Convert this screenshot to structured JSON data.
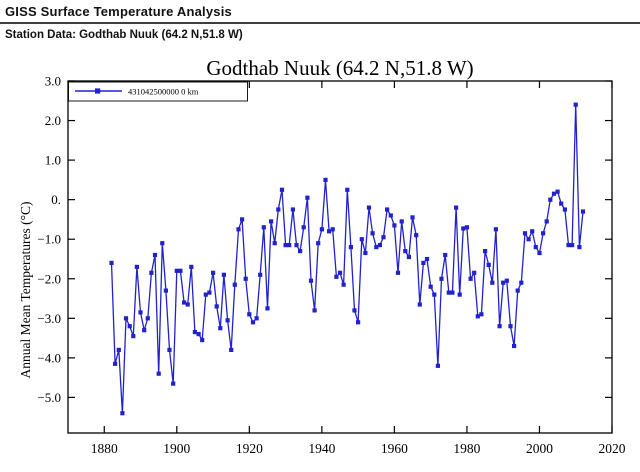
{
  "page": {
    "header_title": "GISS Surface Temperature Analysis",
    "station_line": "Station Data: Godthab Nuuk (64.2 N,51.8 W)"
  },
  "chart_data": {
    "type": "line",
    "title": "Godthab Nuuk (64.2 N,51.8 W)",
    "ylabel": "Annual Mean Temperatures (°C)",
    "xlabel": "",
    "grid": false,
    "legend_position": "top-left",
    "legend_label": "431042500000  0 km",
    "line_color": "#2222cc",
    "marker": "square",
    "xlim": [
      1870,
      2020
    ],
    "ylim": [
      -5.9,
      3.0
    ],
    "xticks": [
      1880,
      1900,
      1920,
      1940,
      1960,
      1980,
      2000,
      2020
    ],
    "ytick_values": [
      3,
      2,
      1,
      0,
      -1,
      -2,
      -3,
      -4,
      -5
    ],
    "ytick_labels": [
      "3.0",
      "2.0",
      "1.0",
      "0.",
      "−1.0",
      "−2.0",
      "−3.0",
      "−4.0",
      "−5.0"
    ],
    "series": [
      {
        "name": "431042500000 0 km",
        "x": [
          1882,
          1883,
          1884,
          1885,
          1886,
          1887,
          1888,
          1889,
          1890,
          1891,
          1892,
          1893,
          1894,
          1895,
          1896,
          1897,
          1898,
          1899,
          1900,
          1901,
          1902,
          1903,
          1904,
          1905,
          1906,
          1907,
          1908,
          1909,
          1910,
          1911,
          1912,
          1913,
          1914,
          1915,
          1916,
          1917,
          1918,
          1919,
          1920,
          1921,
          1922,
          1923,
          1924,
          1925,
          1926,
          1927,
          1928,
          1929,
          1930,
          1931,
          1932,
          1933,
          1934,
          1935,
          1936,
          1937,
          1938,
          1939,
          1940,
          1941,
          1942,
          1943,
          1944,
          1945,
          1946,
          1947,
          1948,
          1949,
          1950,
          1951,
          1952,
          1953,
          1954,
          1955,
          1956,
          1957,
          1958,
          1959,
          1960,
          1961,
          1962,
          1963,
          1964,
          1965,
          1966,
          1967,
          1968,
          1969,
          1970,
          1971,
          1972,
          1973,
          1974,
          1975,
          1976,
          1977,
          1978,
          1979,
          1980,
          1981,
          1982,
          1983,
          1984,
          1985,
          1986,
          1987,
          1988,
          1989,
          1990,
          1991,
          1992,
          1993,
          1994,
          1995,
          1996,
          1997,
          1998,
          1999,
          2000,
          2001,
          2002,
          2003,
          2004,
          2005,
          2006,
          2007,
          2008,
          2009,
          2010,
          2011,
          2012
        ],
        "values": [
          -1.6,
          -4.15,
          -3.8,
          -5.4,
          -3.0,
          -3.2,
          -3.45,
          -1.7,
          -2.85,
          -3.3,
          -3.0,
          -1.85,
          -1.4,
          -4.4,
          -1.1,
          -2.3,
          -3.8,
          -4.65,
          -1.8,
          -1.8,
          -2.6,
          -2.65,
          -1.7,
          -3.35,
          -3.4,
          -3.55,
          -2.4,
          -2.35,
          -1.85,
          -2.7,
          -3.25,
          -1.9,
          -3.05,
          -3.8,
          -2.15,
          -0.75,
          -0.5,
          -2.0,
          -2.9,
          -3.1,
          -3.0,
          -1.9,
          -0.7,
          -2.75,
          -0.55,
          -1.1,
          -0.25,
          0.25,
          -1.15,
          -1.15,
          -0.25,
          -1.15,
          -1.3,
          -0.7,
          0.05,
          -2.05,
          -2.8,
          -1.1,
          -0.75,
          0.5,
          -0.8,
          -0.75,
          -1.95,
          -1.85,
          -2.15,
          0.25,
          -1.2,
          -2.8,
          -3.1,
          -1.0,
          -1.35,
          -0.2,
          -0.85,
          -1.2,
          -1.15,
          -0.95,
          -0.25,
          -0.4,
          -0.65,
          -1.85,
          -0.55,
          -1.3,
          -1.45,
          -0.45,
          -0.9,
          -2.65,
          -1.6,
          -1.5,
          -2.2,
          -2.4,
          -4.2,
          -2.0,
          -1.4,
          -2.35,
          -2.35,
          -0.2,
          -2.4,
          -0.73,
          -0.7,
          -2.0,
          -1.85,
          -2.95,
          -2.9,
          -1.3,
          -1.65,
          -2.1,
          -0.75,
          -3.2,
          -2.1,
          -2.05,
          -3.2,
          -3.7,
          -2.3,
          -2.1,
          -0.85,
          -1.0,
          -0.8,
          -1.2,
          -1.35,
          -0.85,
          -0.55,
          0.0,
          0.15,
          0.2,
          -0.1,
          -0.25,
          -1.15,
          -1.15,
          2.4,
          -1.2,
          -0.3
        ]
      }
    ]
  }
}
